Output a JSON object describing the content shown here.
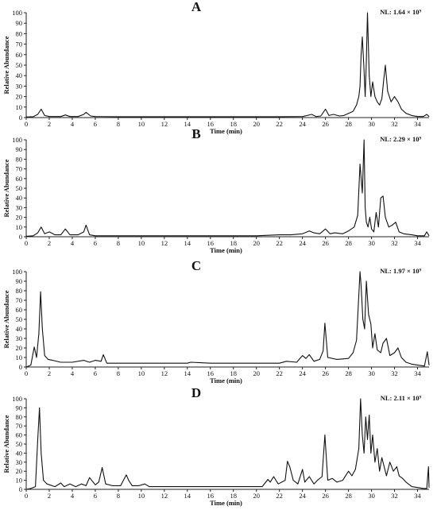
{
  "common": {
    "xlabel": "Time (min)",
    "ylabel": "Relative Abundance",
    "x_ticks": [
      "0",
      "2",
      "4",
      "6",
      "8",
      "10",
      "12",
      "14",
      "16",
      "18",
      "20",
      "22",
      "24",
      "26",
      "28",
      "30",
      "32",
      "34"
    ],
    "y_ticks": [
      "0",
      "10",
      "20",
      "30",
      "40",
      "50",
      "60",
      "70",
      "80",
      "90",
      "100"
    ]
  },
  "chart_data": [
    {
      "type": "line",
      "panel_label": "A",
      "nl_label": "NL: 1.64 × 10⁹",
      "xlabel": "Time (min)",
      "ylabel": "Relative Abundance",
      "xlim": [
        0,
        35
      ],
      "ylim": [
        0,
        100
      ],
      "series": [
        {
          "x": [
            0.0,
            0.6,
            1.0,
            1.3,
            1.6,
            2.0,
            3.0,
            3.4,
            3.8,
            4.5,
            5.0,
            5.2,
            5.6,
            6.0,
            8.0,
            10.0,
            12.0,
            14.0,
            16.0,
            18.0,
            20.0,
            22.0,
            24.0,
            24.8,
            25.2,
            25.6,
            26.0,
            26.3,
            26.7,
            27.2,
            27.6,
            28.0,
            28.4,
            28.7,
            28.9,
            29.0,
            29.1,
            29.2,
            29.35,
            29.45,
            29.55,
            29.65,
            29.8,
            29.95,
            30.1,
            30.3,
            30.5,
            30.7,
            30.9,
            31.05,
            31.2,
            31.4,
            31.7,
            32.0,
            32.3,
            32.6,
            33.0,
            33.5,
            34.0,
            34.5,
            34.8,
            35.0
          ],
          "y": [
            0.5,
            0.8,
            3,
            8,
            2,
            1,
            1,
            2.5,
            1,
            1,
            3,
            5,
            1.5,
            1,
            0.8,
            0.8,
            0.8,
            0.8,
            0.8,
            0.8,
            0.8,
            0.8,
            1,
            3,
            1,
            1.5,
            8,
            2,
            3,
            1.5,
            2,
            4,
            6,
            12,
            20,
            30,
            60,
            77,
            45,
            20,
            55,
            100,
            40,
            20,
            34,
            20,
            15,
            12,
            18,
            35,
            50,
            25,
            15,
            20,
            15,
            8,
            4,
            2,
            1,
            1,
            3,
            1
          ]
        }
      ]
    },
    {
      "type": "line",
      "panel_label": "B",
      "nl_label": "NL: 2.29 × 10⁹",
      "xlabel": "Time (min)",
      "ylabel": "Relative Abundance",
      "xlim": [
        0,
        35
      ],
      "ylim": [
        0,
        100
      ],
      "series": [
        {
          "x": [
            0.0,
            0.6,
            1.0,
            1.3,
            1.6,
            2.0,
            2.5,
            3.0,
            3.4,
            3.8,
            4.5,
            5.0,
            5.2,
            5.5,
            6.0,
            8.0,
            10.0,
            12.0,
            14.0,
            16.0,
            18.0,
            20.0,
            22.0,
            23.0,
            24.0,
            24.6,
            25.0,
            25.5,
            26.0,
            26.4,
            26.8,
            27.5,
            28.0,
            28.5,
            28.8,
            29.0,
            29.2,
            29.35,
            29.45,
            29.55,
            29.7,
            29.85,
            30.0,
            30.2,
            30.4,
            30.6,
            30.8,
            31.0,
            31.2,
            31.5,
            31.8,
            32.1,
            32.4,
            32.8,
            33.5,
            34.0,
            34.6,
            34.8,
            35.0
          ],
          "y": [
            0.5,
            1,
            4,
            10,
            3,
            5,
            2,
            2,
            8,
            2,
            2,
            5,
            12,
            2,
            1,
            1,
            1,
            1,
            1,
            1,
            1,
            1,
            2,
            2,
            3,
            6,
            4,
            3,
            8,
            3,
            4,
            3,
            6,
            10,
            22,
            75,
            45,
            100,
            30,
            15,
            10,
            20,
            8,
            5,
            25,
            10,
            40,
            42,
            20,
            10,
            12,
            15,
            5,
            3,
            2,
            1,
            1,
            5,
            1
          ]
        }
      ]
    },
    {
      "type": "line",
      "panel_label": "C",
      "nl_label": "NL: 1.97 × 10⁹",
      "xlabel": "Time (min)",
      "ylabel": "Relative Abundance",
      "xlim": [
        0,
        35
      ],
      "ylim": [
        0,
        100
      ],
      "series": [
        {
          "x": [
            0.0,
            0.4,
            0.7,
            0.9,
            1.1,
            1.25,
            1.4,
            1.6,
            1.9,
            2.3,
            3.0,
            4.0,
            5.0,
            5.5,
            6.0,
            6.5,
            6.7,
            7.0,
            8.0,
            10.0,
            12.0,
            14.0,
            14.3,
            16.0,
            18.0,
            20.0,
            22.0,
            22.6,
            23.5,
            24.0,
            24.3,
            24.6,
            25.0,
            25.5,
            25.8,
            25.95,
            26.2,
            27.0,
            28.0,
            28.4,
            28.7,
            29.0,
            29.1,
            29.25,
            29.4,
            29.55,
            29.75,
            29.95,
            30.1,
            30.3,
            30.5,
            30.8,
            31.0,
            31.3,
            31.6,
            32.0,
            32.3,
            32.6,
            33.0,
            33.5,
            34.0,
            34.6,
            34.85,
            35.0
          ],
          "y": [
            0,
            2,
            21,
            10,
            35,
            79,
            40,
            12,
            8,
            7,
            5,
            5,
            7,
            5,
            7,
            6,
            13,
            4,
            4,
            4,
            4,
            4,
            5,
            4,
            4,
            4,
            4,
            6,
            5,
            12,
            9,
            13,
            6,
            8,
            17,
            46,
            10,
            8,
            9,
            15,
            28,
            100,
            85,
            50,
            40,
            90,
            55,
            45,
            20,
            35,
            18,
            15,
            25,
            30,
            12,
            15,
            20,
            10,
            5,
            3,
            2,
            1,
            16,
            2
          ]
        }
      ]
    },
    {
      "type": "line",
      "panel_label": "D",
      "nl_label": "NL: 2.11 × 10⁹",
      "xlabel": "Time (min)",
      "ylabel": "Relative Abundance",
      "xlim": [
        0,
        35
      ],
      "ylim": [
        0,
        100
      ],
      "series": [
        {
          "x": [
            0.0,
            0.4,
            0.8,
            1.0,
            1.15,
            1.3,
            1.5,
            1.8,
            2.5,
            3.0,
            3.3,
            3.8,
            4.3,
            4.8,
            5.2,
            5.5,
            6.0,
            6.3,
            6.6,
            6.9,
            7.5,
            8.2,
            8.7,
            8.9,
            9.2,
            9.8,
            10.3,
            10.7,
            11.5,
            12.5,
            13.5,
            14.3,
            15.0,
            15.5,
            16.5,
            17.5,
            18.5,
            19.5,
            20.5,
            21.0,
            21.2,
            21.5,
            21.9,
            22.5,
            22.7,
            22.9,
            23.2,
            23.6,
            24.0,
            24.2,
            24.6,
            25.0,
            25.3,
            25.7,
            25.95,
            26.2,
            26.6,
            27.0,
            27.5,
            28.0,
            28.3,
            28.6,
            28.9,
            29.05,
            29.2,
            29.35,
            29.5,
            29.65,
            29.8,
            29.95,
            30.1,
            30.3,
            30.5,
            30.7,
            30.9,
            31.1,
            31.3,
            31.6,
            31.9,
            32.2,
            32.4,
            32.7,
            33.0,
            33.5,
            34.0,
            34.5,
            34.8,
            34.95,
            35.0
          ],
          "y": [
            0,
            1,
            3,
            55,
            90,
            40,
            10,
            6,
            3,
            7,
            3,
            6,
            3,
            6,
            4,
            13,
            5,
            8,
            24,
            6,
            4,
            4,
            16,
            10,
            4,
            4,
            6,
            3,
            3,
            3,
            3,
            3,
            3,
            3,
            3,
            3,
            3,
            3,
            3,
            11,
            8,
            14,
            6,
            10,
            31,
            25,
            10,
            6,
            22,
            8,
            14,
            6,
            10,
            14,
            60,
            10,
            12,
            8,
            10,
            20,
            15,
            22,
            45,
            100,
            60,
            40,
            80,
            55,
            82,
            40,
            60,
            30,
            45,
            20,
            35,
            25,
            15,
            30,
            20,
            25,
            15,
            12,
            8,
            3,
            2,
            1,
            1,
            25,
            2
          ]
        }
      ]
    }
  ]
}
